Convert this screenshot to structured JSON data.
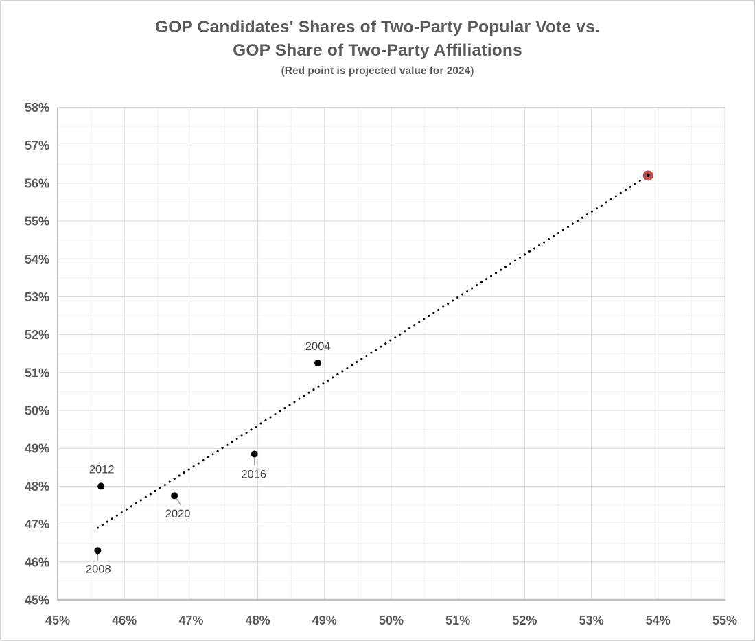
{
  "window": {
    "background": "#ffffff",
    "border_color": "#d0d0d0"
  },
  "title": {
    "line1": "GOP Candidates' Shares of Two-Party Popular Vote vs.",
    "line2": "GOP Share of Two-Party Affiliations",
    "subtitle": "(Red point is projected value for 2024)",
    "color": "#595959"
  },
  "chart_data": {
    "type": "scatter",
    "title": "GOP Candidates' Shares of Two-Party Popular Vote vs. GOP Share of Two-Party Affiliations",
    "subtitle": "(Red point is projected value for 2024)",
    "xlabel": "",
    "ylabel": "",
    "legend": "none",
    "grid": true,
    "colors": {
      "major_grid": "#d9d9d9",
      "minor_grid": "#f2f2f2",
      "axis_line": "#bfbfbf",
      "tick_text": "#595959",
      "point_label": "#404040",
      "leader_line": "#a6a6a6",
      "trendline": "#000000",
      "marker_black": "#000000",
      "marker_red": "#c0504d"
    },
    "x_axis": {
      "min": 45,
      "max": 55,
      "major_step": 1,
      "minor_step": 0.5,
      "ticks": [
        {
          "value": 45,
          "label": "45%"
        },
        {
          "value": 46,
          "label": "46%"
        },
        {
          "value": 47,
          "label": "47%"
        },
        {
          "value": 48,
          "label": "48%"
        },
        {
          "value": 49,
          "label": "49%"
        },
        {
          "value": 50,
          "label": "50%"
        },
        {
          "value": 51,
          "label": "51%"
        },
        {
          "value": 52,
          "label": "52%"
        },
        {
          "value": 53,
          "label": "53%"
        },
        {
          "value": 54,
          "label": "54%"
        },
        {
          "value": 55,
          "label": "55%"
        }
      ]
    },
    "y_axis": {
      "min": 45,
      "max": 58,
      "major_step": 1,
      "minor_step": 0.5,
      "ticks": [
        {
          "value": 45,
          "label": "45%"
        },
        {
          "value": 46,
          "label": "46%"
        },
        {
          "value": 47,
          "label": "47%"
        },
        {
          "value": 48,
          "label": "48%"
        },
        {
          "value": 49,
          "label": "49%"
        },
        {
          "value": 50,
          "label": "50%"
        },
        {
          "value": 51,
          "label": "51%"
        },
        {
          "value": 52,
          "label": "52%"
        },
        {
          "value": 53,
          "label": "53%"
        },
        {
          "value": 54,
          "label": "54%"
        },
        {
          "value": 55,
          "label": "55%"
        },
        {
          "value": 56,
          "label": "56%"
        },
        {
          "value": 57,
          "label": "57%"
        },
        {
          "value": 58,
          "label": "58%"
        }
      ]
    },
    "points": [
      {
        "label": "2004",
        "x": 48.9,
        "y": 51.25,
        "color": "#000000",
        "r": 5,
        "label_offset": [
          0,
          -19
        ],
        "leader": null,
        "center_dot": false,
        "projected": false
      },
      {
        "label": "2008",
        "x": 45.6,
        "y": 46.3,
        "color": "#000000",
        "r": 5,
        "label_offset": [
          1,
          32
        ],
        "leader": [
          [
            0,
            4
          ],
          [
            0,
            15
          ]
        ],
        "center_dot": false,
        "projected": false
      },
      {
        "label": "2012",
        "x": 45.65,
        "y": 48.0,
        "color": "#000000",
        "r": 5,
        "label_offset": [
          1,
          -19
        ],
        "leader": null,
        "center_dot": false,
        "projected": false
      },
      {
        "label": "2016",
        "x": 47.95,
        "y": 48.85,
        "color": "#000000",
        "r": 5,
        "label_offset": [
          -1,
          35
        ],
        "leader": [
          [
            0,
            4
          ],
          [
            0,
            17
          ]
        ],
        "center_dot": false,
        "projected": false
      },
      {
        "label": "2020",
        "x": 46.75,
        "y": 47.75,
        "color": "#000000",
        "r": 5,
        "label_offset": [
          5,
          32
        ],
        "leader": [
          [
            3,
            4
          ],
          [
            9,
            13
          ]
        ],
        "center_dot": false,
        "projected": false
      },
      {
        "label": "",
        "x": 53.85,
        "y": 56.2,
        "color": "#c0504d",
        "r": 7.5,
        "label_offset": null,
        "leader": null,
        "center_dot": true,
        "projected": true
      }
    ],
    "trendline": {
      "style": "dotted",
      "color": "#000000",
      "from": {
        "x": 45.6,
        "y": 46.9
      },
      "to": {
        "x": 53.85,
        "y": 56.2
      }
    }
  }
}
